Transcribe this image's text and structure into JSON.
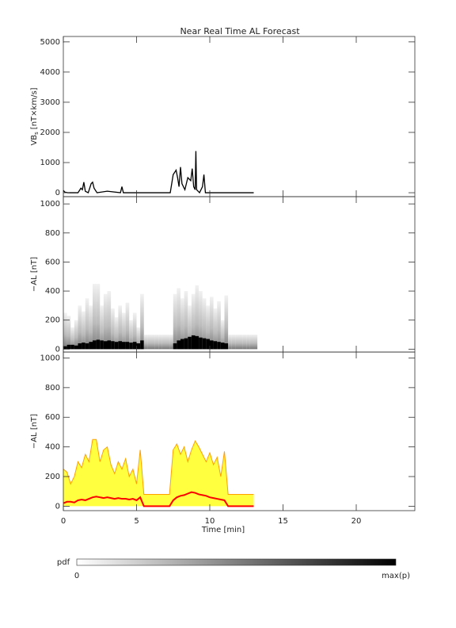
{
  "chart_data": [
    {
      "type": "line",
      "title": "Near Real Time AL Forecast",
      "ylabel": "VB",
      "ylabel_subscript": "s",
      "ylabel_unit": "[nT×km/s]",
      "xlim": [
        0,
        24
      ],
      "xticks": [
        0,
        5,
        10,
        15,
        20
      ],
      "show_xtick_labels": false,
      "ylim": [
        -130,
        5180
      ],
      "yticks": [
        0,
        1000,
        2000,
        3000,
        4000,
        5000
      ],
      "x": [
        0,
        0.1,
        0.3,
        1.0,
        1.2,
        1.3,
        1.4,
        1.5,
        1.7,
        1.9,
        2.0,
        2.1,
        2.3,
        3.0,
        3.9,
        4.0,
        4.1,
        7.3,
        7.5,
        7.7,
        7.8,
        7.9,
        8.0,
        8.1,
        8.3,
        8.5,
        8.7,
        8.8,
        8.9,
        9.0,
        9.05,
        9.1,
        9.3,
        9.5,
        9.6,
        9.7,
        13.0
      ],
      "series": [
        {
          "color": "#000000",
          "values": [
            80,
            20,
            0,
            0,
            150,
            100,
            350,
            50,
            0,
            300,
            350,
            150,
            0,
            50,
            0,
            200,
            0,
            0,
            600,
            750,
            500,
            200,
            850,
            300,
            100,
            500,
            400,
            800,
            200,
            100,
            1380,
            100,
            0,
            200,
            600,
            0,
            0
          ]
        }
      ]
    },
    {
      "type": "heatmap",
      "ylabel": "−AL [nT]",
      "xlim": [
        0,
        24
      ],
      "xticks": [
        0,
        5,
        10,
        15,
        20
      ],
      "show_xtick_labels": false,
      "ylim": [
        -20,
        1050
      ],
      "yticks": [
        0,
        200,
        400,
        600,
        800,
        1000
      ],
      "x": [
        0,
        0.25,
        0.5,
        0.75,
        1,
        1.25,
        1.5,
        1.75,
        2,
        2.25,
        2.5,
        2.75,
        3,
        3.25,
        3.5,
        3.75,
        4,
        4.25,
        4.5,
        4.75,
        5,
        5.25,
        5.5,
        5.75,
        6,
        6.25,
        6.5,
        6.75,
        7,
        7.25,
        7.5,
        7.75,
        8,
        8.25,
        8.5,
        8.75,
        9,
        9.25,
        9.5,
        9.75,
        10,
        10.25,
        10.5,
        10.75,
        11,
        11.25,
        11.5,
        11.75,
        12,
        12.25,
        12.5,
        12.75,
        13
      ],
      "series": [
        {
          "color": "#bdbdbd",
          "values": [
            250,
            230,
            150,
            200,
            300,
            260,
            350,
            300,
            450,
            450,
            300,
            380,
            400,
            280,
            220,
            300,
            250,
            320,
            200,
            250,
            150,
            380,
            100,
            100,
            100,
            100,
            100,
            100,
            100,
            100,
            380,
            420,
            350,
            400,
            300,
            380,
            440,
            400,
            350,
            300,
            360,
            280,
            330,
            200,
            370,
            100,
            100,
            100,
            100,
            100,
            100,
            100,
            100
          ]
        },
        {
          "color": "#000000",
          "values": [
            20,
            30,
            30,
            25,
            40,
            45,
            40,
            50,
            60,
            65,
            60,
            55,
            60,
            55,
            50,
            55,
            50,
            50,
            45,
            50,
            40,
            60,
            0,
            0,
            0,
            0,
            0,
            0,
            0,
            0,
            40,
            60,
            70,
            75,
            85,
            95,
            90,
            80,
            75,
            70,
            60,
            55,
            50,
            45,
            40,
            0,
            0,
            0,
            0,
            0,
            0,
            0,
            0
          ]
        }
      ]
    },
    {
      "type": "band",
      "ylabel": "−AL [nT]",
      "xlabel": "Time [min]",
      "xlim": [
        0,
        24
      ],
      "xticks": [
        0,
        5,
        10,
        15,
        20
      ],
      "show_xtick_labels": true,
      "ylim": [
        -30,
        1040
      ],
      "yticks": [
        0,
        200,
        400,
        600,
        800,
        1000
      ],
      "x": [
        0,
        0.25,
        0.5,
        0.75,
        1,
        1.25,
        1.5,
        1.75,
        2,
        2.25,
        2.5,
        2.75,
        3,
        3.25,
        3.5,
        3.75,
        4,
        4.25,
        4.5,
        4.75,
        5,
        5.25,
        5.5,
        5.75,
        6,
        6.25,
        6.5,
        6.75,
        7,
        7.25,
        7.5,
        7.75,
        8,
        8.25,
        8.5,
        8.75,
        9,
        9.25,
        9.5,
        9.75,
        10,
        10.25,
        10.5,
        10.75,
        11,
        11.25,
        11.5,
        11.75,
        12,
        12.25,
        12.5,
        12.75,
        13
      ],
      "series": [
        {
          "color": "#ffa000",
          "fill": "#ffff40",
          "values": [
            250,
            230,
            150,
            200,
            300,
            260,
            350,
            300,
            450,
            450,
            300,
            380,
            400,
            280,
            220,
            300,
            250,
            320,
            200,
            250,
            150,
            380,
            80,
            80,
            80,
            80,
            80,
            80,
            80,
            80,
            380,
            420,
            350,
            400,
            300,
            380,
            440,
            400,
            350,
            300,
            360,
            280,
            330,
            200,
            370,
            80,
            80,
            80,
            80,
            80,
            80,
            80,
            80
          ]
        },
        {
          "color": "#ff0000",
          "values": [
            20,
            30,
            30,
            25,
            40,
            45,
            40,
            50,
            60,
            65,
            60,
            55,
            60,
            55,
            50,
            55,
            50,
            50,
            45,
            50,
            40,
            60,
            0,
            0,
            0,
            0,
            0,
            0,
            0,
            0,
            40,
            60,
            70,
            75,
            85,
            95,
            90,
            80,
            75,
            70,
            60,
            55,
            50,
            45,
            40,
            0,
            0,
            0,
            0,
            0,
            0,
            0,
            0
          ]
        }
      ]
    }
  ],
  "colorbar": {
    "label": "pdf",
    "min_label": "0",
    "max_label": "max(p)"
  }
}
